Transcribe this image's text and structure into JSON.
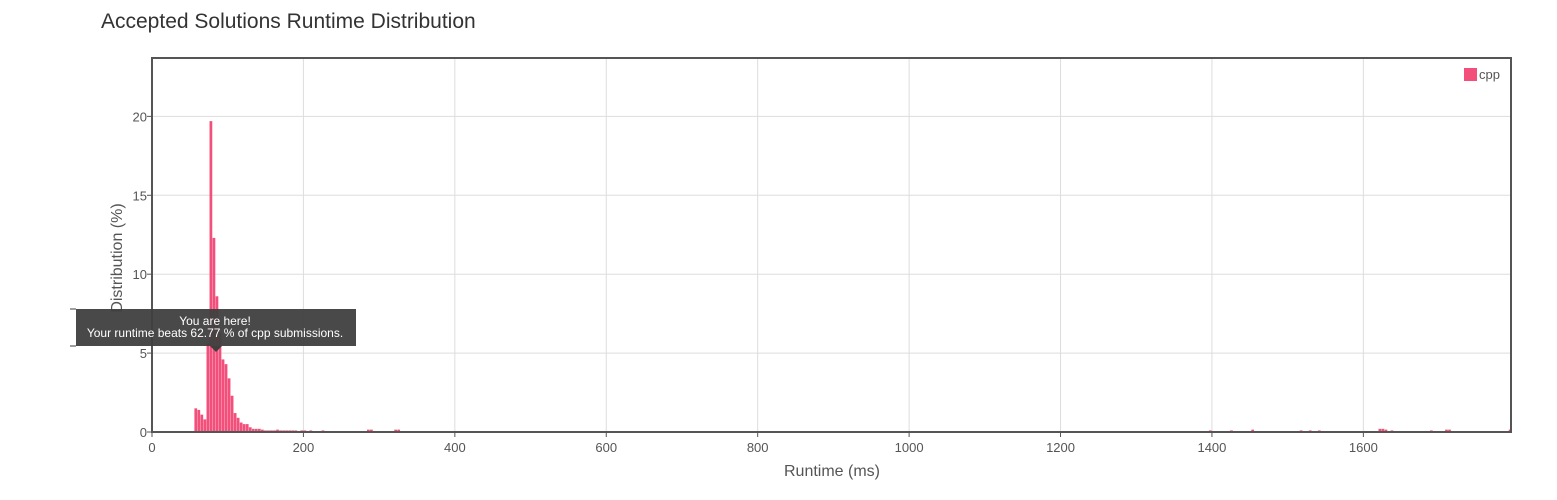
{
  "chart_data": {
    "type": "bar",
    "title": "Accepted Solutions Runtime Distribution",
    "xlabel": "Runtime (ms)",
    "ylabel": "Distribution (%)",
    "xlim": [
      0,
      1795
    ],
    "ylim": [
      0,
      23.7
    ],
    "x_ticks": [
      0,
      200,
      400,
      600,
      800,
      1000,
      1200,
      1400,
      1600
    ],
    "y_ticks": [
      0,
      5,
      10,
      15,
      20
    ],
    "grid": true,
    "legend_position": "top-right",
    "bar_width": 4,
    "series": [
      {
        "name": "cpp",
        "color": "#f2507b",
        "x": [
          56,
          60,
          64,
          68,
          72,
          76,
          80,
          84,
          88,
          92,
          96,
          100,
          104,
          108,
          112,
          116,
          120,
          124,
          128,
          132,
          136,
          140,
          144,
          148,
          152,
          156,
          160,
          164,
          168,
          172,
          176,
          180,
          184,
          188,
          196,
          200,
          208,
          224,
          284,
          288,
          320,
          324,
          1396,
          1424,
          1452,
          1516,
          1528,
          1540,
          1620,
          1624,
          1628,
          1636,
          1688,
          1708,
          1712,
          1792
        ],
        "values": [
          1.5,
          1.4,
          1.1,
          0.8,
          5.6,
          19.7,
          12.3,
          8.6,
          6.3,
          4.6,
          4.3,
          3.4,
          2.3,
          1.2,
          0.9,
          0.6,
          0.5,
          0.5,
          0.3,
          0.2,
          0.2,
          0.2,
          0.15,
          0.1,
          0.1,
          0.1,
          0.1,
          0.15,
          0.1,
          0.1,
          0.1,
          0.1,
          0.1,
          0.1,
          0.1,
          0.1,
          0.1,
          0.1,
          0.15,
          0.15,
          0.15,
          0.15,
          0.1,
          0.1,
          0.15,
          0.1,
          0.1,
          0.1,
          0.2,
          0.2,
          0.15,
          0.1,
          0.1,
          0.15,
          0.15,
          0.15
        ]
      }
    ],
    "highlight": {
      "x": 80,
      "line1": "You are here!",
      "line2": "Your runtime beats 62.77 % of cpp submissions."
    }
  }
}
